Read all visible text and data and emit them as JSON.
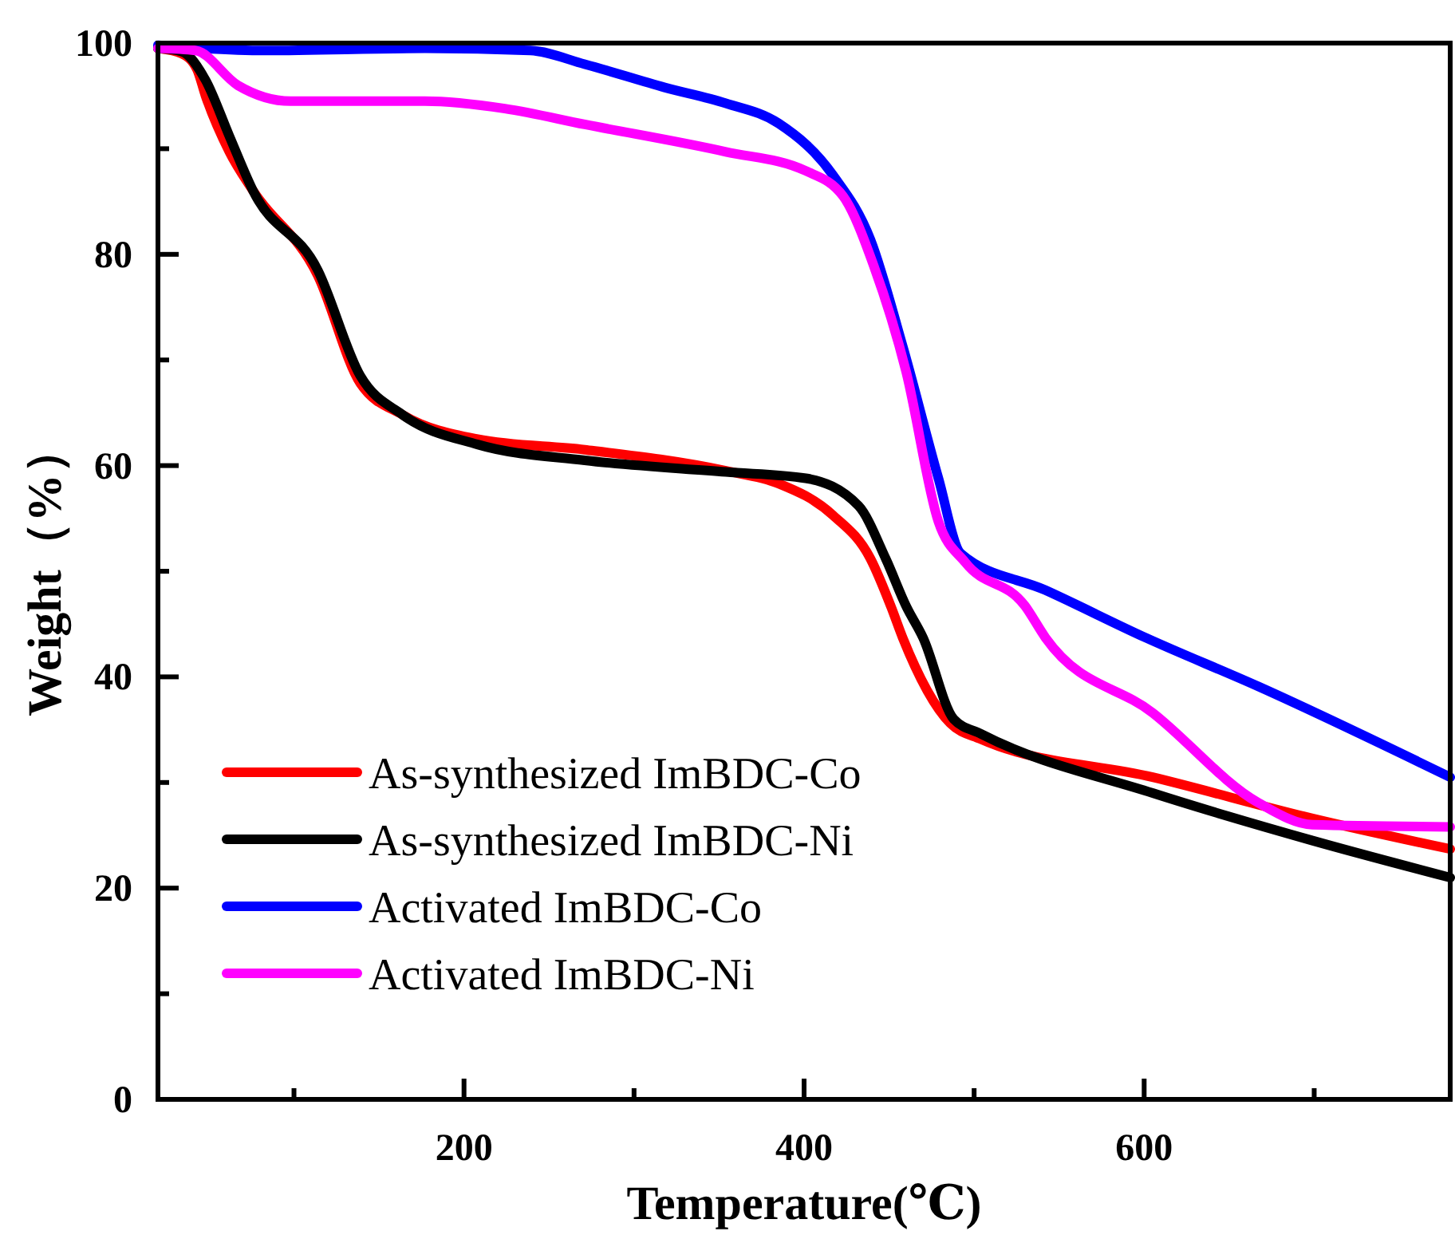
{
  "chart_data": {
    "type": "line",
    "xlabel": "Temperature(℃)",
    "ylabel": "Weight（%）",
    "xlim": [
      20,
      780
    ],
    "ylim": [
      0,
      100
    ],
    "xticks": [
      {
        "value": 100,
        "label": null
      },
      200,
      {
        "value": 300,
        "label": null
      },
      400,
      {
        "value": 500,
        "label": null
      },
      600,
      {
        "value": 700,
        "label": null
      }
    ],
    "yticks": [
      0,
      {
        "value": 10,
        "label": null
      },
      20,
      {
        "value": 30,
        "label": null
      },
      40,
      {
        "value": 50,
        "label": null
      },
      60,
      {
        "value": 70,
        "label": null
      },
      80,
      {
        "value": 90,
        "label": null
      },
      100
    ],
    "legend": "bottom left",
    "grid": false,
    "line_style": "solid",
    "marker": "none",
    "series": [
      {
        "name": "As-synthesized ImBDC-Co",
        "color": "#ff0000",
        "x": [
          20,
          34,
          43,
          48,
          62,
          76,
          114,
          139,
          164,
          208,
          271,
          354,
          385,
          417,
          439,
          451,
          458,
          486,
          504,
          605,
          699,
          780
        ],
        "values": [
          99.5,
          99,
          97.5,
          95,
          89.7,
          86,
          78,
          67.8,
          64.8,
          62.5,
          61.5,
          59.5,
          58.3,
          55.3,
          51.2,
          46.7,
          43.7,
          35.6,
          34.1,
          30.5,
          26.6,
          23.7
        ]
      },
      {
        "name": "As-synthesized ImBDC-Ni",
        "color": "#000000",
        "x": [
          20,
          34,
          48,
          62,
          76,
          114,
          139,
          164,
          208,
          271,
          354,
          401,
          432,
          448,
          460,
          470,
          488,
          504,
          605,
          699,
          780
        ],
        "values": [
          99.5,
          99.2,
          96.5,
          91.2,
          86,
          78.5,
          68.5,
          64.8,
          62,
          60.5,
          59.4,
          58.8,
          56.2,
          51.2,
          46.7,
          43.7,
          36,
          34.6,
          29,
          24.5,
          21
        ]
      },
      {
        "name": "Activated ImBDC-Co",
        "color": "#0000ff",
        "x": [
          20,
          83,
          177,
          239,
          271,
          318,
          354,
          385,
          417,
          439,
          458,
          479,
          492,
          542,
          601,
          667,
          780
        ],
        "values": [
          99.8,
          99.3,
          99.5,
          99.3,
          98,
          95.8,
          94.3,
          92.4,
          87.5,
          81.4,
          71.3,
          58.8,
          51.7,
          48.2,
          43.7,
          39.1,
          30.5
        ]
      },
      {
        "name": "Activated ImBDC-Ni",
        "color": "#ff00ff",
        "x": [
          20,
          42,
          67,
          98,
          177,
          224,
          271,
          354,
          401,
          423,
          441,
          460,
          479,
          495,
          530,
          542,
          605,
          667,
          699,
          780
        ],
        "values": [
          99.5,
          99.3,
          96,
          94.5,
          94.5,
          93.8,
          92.3,
          89.7,
          87.9,
          85.5,
          78.9,
          68.9,
          54.7,
          50.8,
          46.7,
          43.7,
          36.6,
          28.1,
          26,
          25.8
        ]
      }
    ]
  }
}
